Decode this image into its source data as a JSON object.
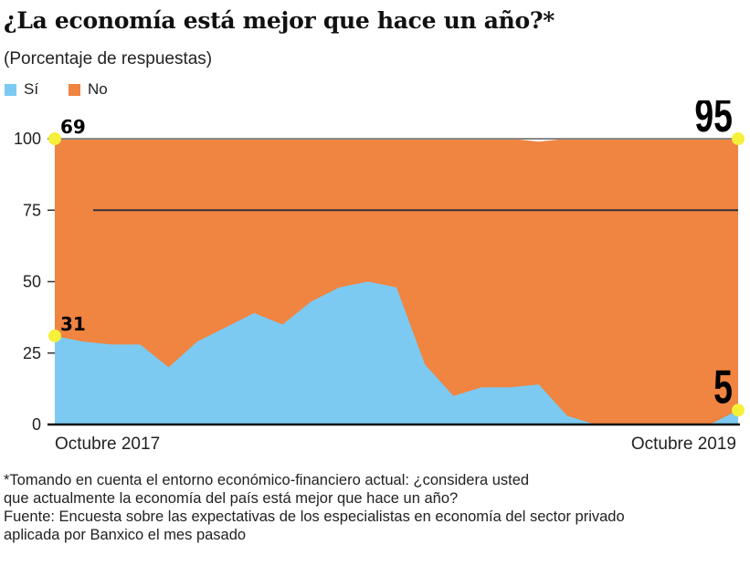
{
  "title": "¿La economía está mejor que hace un año?*",
  "subtitle": "(Porcentaje de respuestas)",
  "colors": {
    "si": "#7ccaf2",
    "no": "#f08441",
    "highlight": "#f5f03a"
  },
  "chart_data": {
    "type": "area",
    "stacked": true,
    "ylim": [
      0,
      100
    ],
    "yticks": [
      0,
      25,
      50,
      75,
      100
    ],
    "xtick_labels": [
      "Octubre 2017",
      "Octubre 2019"
    ],
    "grid": true,
    "legend": "top-left",
    "series": [
      {
        "name": "Sí",
        "values": [
          31,
          29,
          28,
          28,
          20,
          29,
          34,
          39,
          35,
          43,
          48,
          50,
          48,
          21,
          10,
          13,
          13,
          14,
          3,
          0,
          0,
          0,
          0,
          0,
          5
        ]
      },
      {
        "name": "No",
        "values": [
          69,
          71,
          72,
          72,
          80,
          71,
          66,
          61,
          65,
          57,
          52,
          50,
          52,
          79,
          90,
          87,
          87,
          85,
          97,
          100,
          100,
          100,
          100,
          100,
          95
        ]
      }
    ],
    "annotations": [
      {
        "text": "69",
        "series": "No",
        "index": 0
      },
      {
        "text": "31",
        "series": "Sí",
        "index": 0
      },
      {
        "text": "95",
        "series": "No",
        "index": 24
      },
      {
        "text": "5",
        "series": "Sí",
        "index": 24
      }
    ]
  },
  "notes": [
    "*Tomando en cuenta el entorno económico-financiero actual: ¿considera usted",
    "que actualmente la economía del país está mejor que hace un año?",
    "Fuente: Encuesta sobre las expectativas de los especialistas en economía del sector privado",
    "aplicada por Banxico el mes pasado"
  ]
}
